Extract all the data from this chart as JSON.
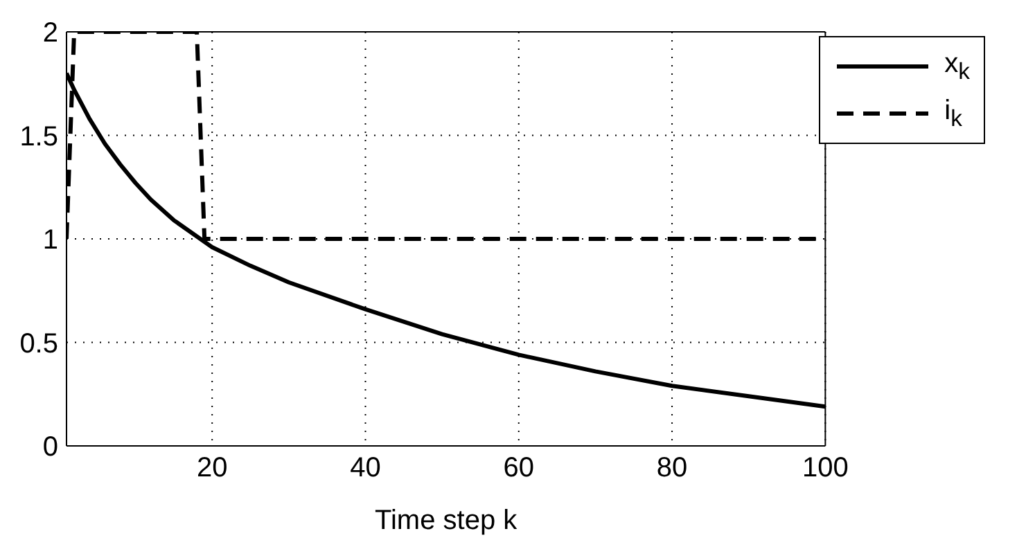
{
  "chart_data": {
    "type": "line",
    "xlabel": "Time step k",
    "xlim": [
      1,
      100
    ],
    "xticks": [
      {
        "value": 1,
        "label": null
      },
      20,
      40,
      60,
      80,
      100
    ],
    "ylim": [
      0,
      2
    ],
    "yticks": [
      0,
      0.5,
      1,
      1.5,
      2
    ],
    "grid": true,
    "legend": "top right",
    "marker": "none",
    "series": [
      {
        "name": "x$_{k}$",
        "color": "#000000",
        "line_style": "solid",
        "x": [
          1,
          2,
          4,
          6,
          8,
          10,
          12,
          15,
          20,
          25,
          30,
          40,
          50,
          60,
          70,
          80,
          90,
          100
        ],
        "values": [
          1.8,
          1.72,
          1.58,
          1.46,
          1.36,
          1.27,
          1.19,
          1.09,
          0.96,
          0.87,
          0.79,
          0.66,
          0.54,
          0.44,
          0.36,
          0.29,
          0.24,
          0.19
        ]
      },
      {
        "name": "i$_{k}$",
        "color": "#000000",
        "line_style": "dashed",
        "x": [
          1,
          2,
          18,
          19,
          100
        ],
        "values": [
          1,
          2,
          2,
          1,
          1
        ]
      }
    ]
  }
}
